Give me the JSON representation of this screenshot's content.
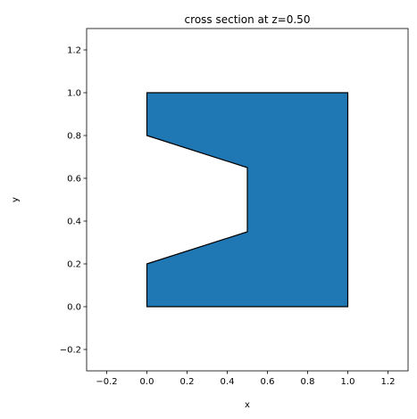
{
  "chart_data": {
    "type": "polygon",
    "title": "cross section at z=0.50",
    "xlabel": "x",
    "ylabel": "y",
    "xlim": [
      -0.3,
      1.3
    ],
    "ylim": [
      -0.3,
      1.3
    ],
    "xticks": [
      -0.2,
      0.0,
      0.2,
      0.4,
      0.6,
      0.8,
      1.0,
      1.2
    ],
    "xtick_labels": [
      "−0.2",
      "0.0",
      "0.2",
      "0.4",
      "0.6",
      "0.8",
      "1.0",
      "1.2"
    ],
    "yticks": [
      -0.2,
      0.0,
      0.2,
      0.4,
      0.6,
      0.8,
      1.0,
      1.2
    ],
    "ytick_labels": [
      "−0.2",
      "0.0",
      "0.2",
      "0.4",
      "0.6",
      "0.8",
      "1.0",
      "1.2"
    ],
    "grid": false,
    "fill_color": "#1f77b4",
    "edge_color": "#000000",
    "polygon": [
      [
        0.0,
        0.0
      ],
      [
        1.0,
        0.0
      ],
      [
        1.0,
        1.0
      ],
      [
        0.0,
        1.0
      ],
      [
        0.0,
        0.8
      ],
      [
        0.5,
        0.65
      ],
      [
        0.5,
        0.35
      ],
      [
        0.0,
        0.2
      ]
    ]
  }
}
